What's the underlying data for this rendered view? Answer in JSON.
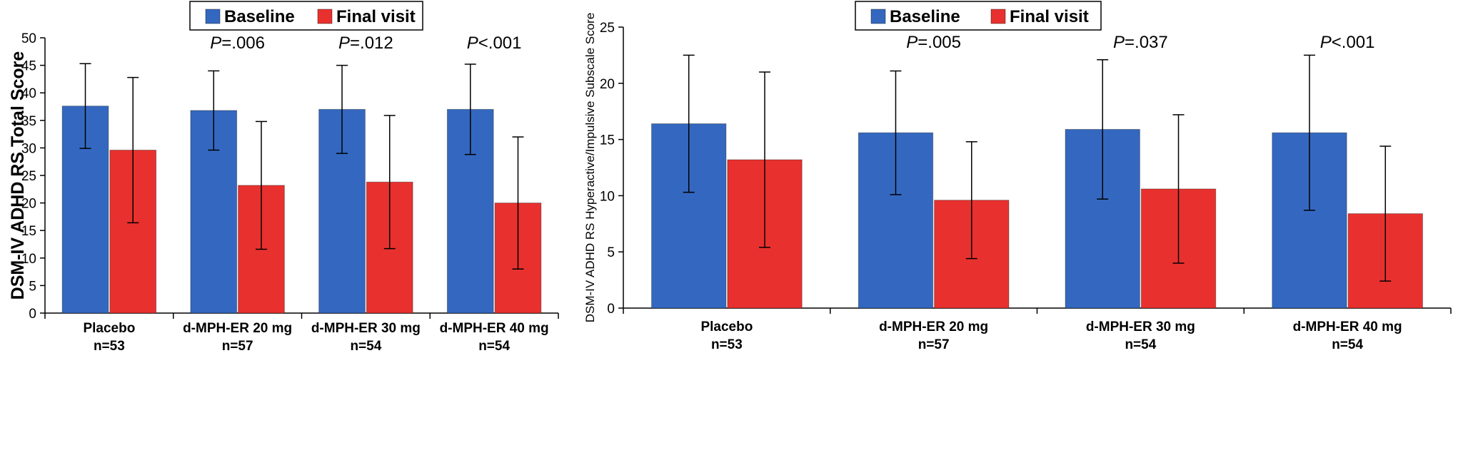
{
  "chart_data": [
    {
      "type": "bar",
      "ylabel": "DSM-IV ADHD RS Total Score",
      "ylim": [
        0,
        50
      ],
      "yticks": [
        "0",
        "5",
        "10",
        "15",
        "20",
        "25",
        "30",
        "35",
        "40",
        "45",
        "50"
      ],
      "categories": [
        "Placebo",
        "d-MPH-ER 20 mg",
        "d-MPH-ER 30 mg",
        "d-MPH-ER 40 mg"
      ],
      "n_labels": [
        "n=53",
        "n=57",
        "n=54",
        "n=54"
      ],
      "series": [
        {
          "name": "Baseline",
          "color": "#3468c0",
          "values": [
            37.6,
            36.8,
            37.0,
            37.0
          ],
          "error": [
            7.7,
            7.2,
            8.0,
            8.2
          ]
        },
        {
          "name": "Final visit",
          "color": "#e8312e",
          "values": [
            29.6,
            23.2,
            23.8,
            20.0
          ],
          "error": [
            13.2,
            11.6,
            12.1,
            12.0
          ]
        }
      ],
      "p_values": [
        {
          "category": 1,
          "prefix": "P",
          "text": "=.006"
        },
        {
          "category": 2,
          "prefix": "P",
          "text": "=.012"
        },
        {
          "category": 3,
          "prefix": "P",
          "text": "<.001"
        }
      ],
      "legend": "top"
    },
    {
      "type": "bar",
      "ylabel": "DSM-IV ADHD RS Hyperactive/Impulsive Subscale Score",
      "ylim": [
        0,
        25
      ],
      "yticks": [
        "0",
        "5",
        "10",
        "15",
        "20",
        "25"
      ],
      "categories": [
        "Placebo",
        "d-MPH-ER 20 mg",
        "d-MPH-ER 30 mg",
        "d-MPH-ER 40 mg"
      ],
      "n_labels": [
        "n=53",
        "n=57",
        "n=54",
        "n=54"
      ],
      "series": [
        {
          "name": "Baseline",
          "color": "#3468c0",
          "values": [
            16.4,
            15.6,
            15.9,
            15.6
          ],
          "error": [
            6.1,
            5.5,
            6.2,
            6.9
          ]
        },
        {
          "name": "Final visit",
          "color": "#e8312e",
          "values": [
            13.2,
            9.6,
            10.6,
            8.4
          ],
          "error": [
            7.8,
            5.2,
            6.6,
            6.0
          ]
        }
      ],
      "p_values": [
        {
          "category": 1,
          "prefix": "P",
          "text": "=.005"
        },
        {
          "category": 2,
          "prefix": "P",
          "text": "=.037"
        },
        {
          "category": 3,
          "prefix": "P",
          "text": "<.001"
        }
      ],
      "legend": "top-right"
    }
  ]
}
